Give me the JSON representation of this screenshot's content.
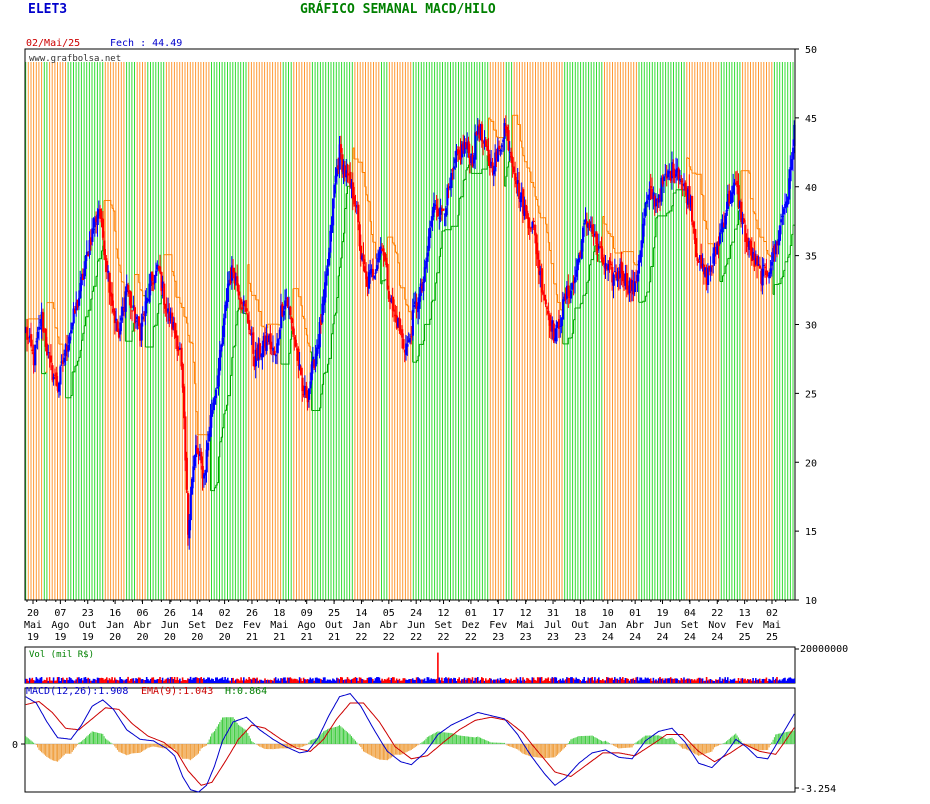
{
  "header": {
    "ticker": "ELET3",
    "title": "GRÁFICO SEMANAL MACD/HILO",
    "date": "02/Mai/25",
    "close_label": "Fech : 44.49",
    "watermark": "www.grafbolsa.net",
    "colors": {
      "ticker": "#0000cc",
      "title": "#008000",
      "date": "#cc0000",
      "close": "#0000cc"
    }
  },
  "chart_data": {
    "type": "candlestick",
    "price_axis": {
      "min": 10,
      "max": 50,
      "ticks": [
        10,
        15,
        20,
        25,
        30,
        35,
        40,
        45,
        50
      ]
    },
    "x_labels": [
      {
        "day": "20",
        "month": "Mai",
        "year": "19"
      },
      {
        "day": "07",
        "month": "Ago",
        "year": "19"
      },
      {
        "day": "23",
        "month": "Out",
        "year": "19"
      },
      {
        "day": "16",
        "month": "Jan",
        "year": "20"
      },
      {
        "day": "06",
        "month": "Abr",
        "year": "20"
      },
      {
        "day": "26",
        "month": "Jun",
        "year": "20"
      },
      {
        "day": "14",
        "month": "Set",
        "year": "20"
      },
      {
        "day": "02",
        "month": "Dez",
        "year": "20"
      },
      {
        "day": "26",
        "month": "Fev",
        "year": "21"
      },
      {
        "day": "18",
        "month": "Mai",
        "year": "21"
      },
      {
        "day": "09",
        "month": "Ago",
        "year": "21"
      },
      {
        "day": "25",
        "month": "Out",
        "year": "21"
      },
      {
        "day": "14",
        "month": "Jan",
        "year": "22"
      },
      {
        "day": "05",
        "month": "Abr",
        "year": "22"
      },
      {
        "day": "24",
        "month": "Jun",
        "year": "22"
      },
      {
        "day": "12",
        "month": "Set",
        "year": "22"
      },
      {
        "day": "01",
        "month": "Dez",
        "year": "22"
      },
      {
        "day": "17",
        "month": "Fev",
        "year": "23"
      },
      {
        "day": "12",
        "month": "Mai",
        "year": "23"
      },
      {
        "day": "31",
        "month": "Jul",
        "year": "23"
      },
      {
        "day": "18",
        "month": "Out",
        "year": "23"
      },
      {
        "day": "10",
        "month": "Jan",
        "year": "24"
      },
      {
        "day": "01",
        "month": "Abr",
        "year": "24"
      },
      {
        "day": "19",
        "month": "Jun",
        "year": "24"
      },
      {
        "day": "04",
        "month": "Set",
        "year": "24"
      },
      {
        "day": "22",
        "month": "Nov",
        "year": "24"
      },
      {
        "day": "13",
        "month": "Fev",
        "year": "25"
      },
      {
        "day": "02",
        "month": "Mai",
        "year": "25"
      }
    ],
    "close_path": [
      [
        0,
        29.5
      ],
      [
        6,
        27.5
      ],
      [
        12,
        30.5
      ],
      [
        18,
        27
      ],
      [
        24,
        25.5
      ],
      [
        32,
        29
      ],
      [
        40,
        32
      ],
      [
        48,
        36
      ],
      [
        55,
        38.5
      ],
      [
        60,
        35
      ],
      [
        66,
        31
      ],
      [
        70,
        29
      ],
      [
        76,
        33
      ],
      [
        80,
        31
      ],
      [
        86,
        29.5
      ],
      [
        94,
        33
      ],
      [
        100,
        34
      ],
      [
        106,
        31
      ],
      [
        112,
        29.5
      ],
      [
        116,
        28
      ],
      [
        118,
        25
      ],
      [
        120,
        20
      ],
      [
        122,
        15
      ],
      [
        124,
        18
      ],
      [
        128,
        21
      ],
      [
        134,
        19
      ],
      [
        140,
        24
      ],
      [
        144,
        26
      ],
      [
        148,
        29
      ],
      [
        150,
        31
      ],
      [
        152,
        33
      ],
      [
        156,
        34
      ],
      [
        162,
        32
      ],
      [
        168,
        30
      ],
      [
        172,
        27.5
      ],
      [
        176,
        28
      ],
      [
        182,
        29
      ],
      [
        188,
        27.5
      ],
      [
        192,
        31
      ],
      [
        196,
        32
      ],
      [
        200,
        30
      ],
      [
        204,
        28
      ],
      [
        208,
        25
      ],
      [
        212,
        25
      ],
      [
        216,
        27
      ],
      [
        220,
        29
      ],
      [
        224,
        31.5
      ],
      [
        228,
        35
      ],
      [
        232,
        40
      ],
      [
        236,
        42.5
      ],
      [
        240,
        41
      ],
      [
        244,
        40
      ],
      [
        248,
        39
      ],
      [
        252,
        35
      ],
      [
        256,
        33
      ],
      [
        262,
        34
      ],
      [
        268,
        36
      ],
      [
        272,
        33
      ],
      [
        276,
        31
      ],
      [
        280,
        30
      ],
      [
        284,
        28.5
      ],
      [
        288,
        28.5
      ],
      [
        292,
        31
      ],
      [
        296,
        32
      ],
      [
        300,
        33.5
      ],
      [
        304,
        37
      ],
      [
        308,
        39
      ],
      [
        312,
        38
      ],
      [
        318,
        39.5
      ],
      [
        324,
        42
      ],
      [
        330,
        43
      ],
      [
        336,
        42
      ],
      [
        340,
        44.5
      ],
      [
        344,
        43
      ],
      [
        350,
        41.5
      ],
      [
        356,
        42.5
      ],
      [
        360,
        44.5
      ],
      [
        366,
        42
      ],
      [
        370,
        40
      ],
      [
        376,
        38
      ],
      [
        382,
        37
      ],
      [
        386,
        34
      ],
      [
        390,
        32
      ],
      [
        394,
        30.5
      ],
      [
        398,
        29
      ],
      [
        402,
        30.5
      ],
      [
        406,
        32
      ],
      [
        412,
        33
      ],
      [
        416,
        35
      ],
      [
        420,
        37
      ],
      [
        424,
        37.5
      ],
      [
        430,
        35.5
      ],
      [
        436,
        34
      ],
      [
        442,
        33.5
      ],
      [
        448,
        34
      ],
      [
        452,
        33
      ],
      [
        458,
        32.5
      ],
      [
        462,
        35.5
      ],
      [
        466,
        38.5
      ],
      [
        470,
        39.5
      ],
      [
        474,
        39
      ],
      [
        478,
        40
      ],
      [
        484,
        41
      ],
      [
        490,
        41.5
      ],
      [
        494,
        40
      ],
      [
        500,
        39
      ],
      [
        504,
        35.5
      ],
      [
        508,
        34
      ],
      [
        512,
        33.5
      ],
      [
        518,
        35
      ],
      [
        522,
        36.5
      ],
      [
        528,
        39
      ],
      [
        534,
        40
      ],
      [
        538,
        38
      ],
      [
        542,
        36
      ],
      [
        546,
        35
      ],
      [
        550,
        34
      ],
      [
        554,
        33.5
      ],
      [
        558,
        34
      ],
      [
        562,
        35
      ],
      [
        566,
        36.5
      ],
      [
        570,
        38.5
      ],
      [
        574,
        40
      ],
      [
        578,
        44.49
      ]
    ],
    "volume": {
      "label": "Vol (mil R$)",
      "axis_label": "20000000",
      "spike_index": 310,
      "spike_value": 19000000
    },
    "macd": {
      "label": "MACD(12,26):1.908",
      "ema_label": "EMA(9):1.043",
      "hist_label": "H:0.864",
      "zero_label": "0",
      "min_label": "-3.254",
      "min": -3.254,
      "macd_path": [
        [
          0,
          3.0
        ],
        [
          8,
          2.6
        ],
        [
          16,
          1.4
        ],
        [
          24,
          0.4
        ],
        [
          34,
          0.3
        ],
        [
          42,
          1.2
        ],
        [
          50,
          2.4
        ],
        [
          58,
          2.8
        ],
        [
          66,
          2.2
        ],
        [
          76,
          0.9
        ],
        [
          86,
          0.3
        ],
        [
          96,
          0.2
        ],
        [
          106,
          -0.3
        ],
        [
          112,
          -0.8
        ],
        [
          118,
          -2.2
        ],
        [
          124,
          -3.1
        ],
        [
          130,
          -3.254
        ],
        [
          136,
          -2.8
        ],
        [
          142,
          -1.5
        ],
        [
          148,
          0.2
        ],
        [
          156,
          1.4
        ],
        [
          166,
          1.7
        ],
        [
          176,
          0.9
        ],
        [
          186,
          0.3
        ],
        [
          196,
          -0.2
        ],
        [
          206,
          -0.6
        ],
        [
          212,
          -0.5
        ],
        [
          220,
          0.4
        ],
        [
          228,
          1.8
        ],
        [
          236,
          3.0
        ],
        [
          244,
          3.2
        ],
        [
          252,
          2.4
        ],
        [
          262,
          0.9
        ],
        [
          272,
          -0.5
        ],
        [
          282,
          -1.2
        ],
        [
          290,
          -1.4
        ],
        [
          300,
          -0.6
        ],
        [
          310,
          0.6
        ],
        [
          320,
          1.2
        ],
        [
          330,
          1.6
        ],
        [
          340,
          2.0
        ],
        [
          350,
          1.8
        ],
        [
          360,
          1.6
        ],
        [
          370,
          0.6
        ],
        [
          380,
          -0.8
        ],
        [
          390,
          -2.0
        ],
        [
          398,
          -2.8
        ],
        [
          406,
          -2.3
        ],
        [
          416,
          -1.3
        ],
        [
          426,
          -0.6
        ],
        [
          436,
          -0.4
        ],
        [
          446,
          -0.9
        ],
        [
          456,
          -1.0
        ],
        [
          466,
          0.2
        ],
        [
          476,
          0.8
        ],
        [
          486,
          1.0
        ],
        [
          496,
          0.1
        ],
        [
          506,
          -1.3
        ],
        [
          516,
          -1.6
        ],
        [
          526,
          -0.7
        ],
        [
          534,
          0.3
        ],
        [
          542,
          -0.2
        ],
        [
          550,
          -0.9
        ],
        [
          558,
          -1.0
        ],
        [
          566,
          0.2
        ],
        [
          578,
          1.908
        ]
      ],
      "ema_path": [
        [
          0,
          2.5
        ],
        [
          10,
          2.7
        ],
        [
          20,
          2.0
        ],
        [
          30,
          1.0
        ],
        [
          40,
          0.9
        ],
        [
          50,
          1.6
        ],
        [
          60,
          2.3
        ],
        [
          70,
          2.2
        ],
        [
          80,
          1.3
        ],
        [
          92,
          0.5
        ],
        [
          104,
          0.1
        ],
        [
          114,
          -0.6
        ],
        [
          122,
          -1.8
        ],
        [
          132,
          -2.8
        ],
        [
          140,
          -2.6
        ],
        [
          150,
          -1.2
        ],
        [
          160,
          0.3
        ],
        [
          170,
          1.2
        ],
        [
          180,
          1.0
        ],
        [
          192,
          0.3
        ],
        [
          204,
          -0.3
        ],
        [
          214,
          -0.5
        ],
        [
          224,
          0.3
        ],
        [
          234,
          1.6
        ],
        [
          244,
          2.6
        ],
        [
          254,
          2.6
        ],
        [
          266,
          1.4
        ],
        [
          278,
          -0.2
        ],
        [
          290,
          -1.0
        ],
        [
          302,
          -0.8
        ],
        [
          314,
          0.1
        ],
        [
          326,
          0.9
        ],
        [
          338,
          1.5
        ],
        [
          350,
          1.7
        ],
        [
          362,
          1.5
        ],
        [
          374,
          0.7
        ],
        [
          386,
          -0.6
        ],
        [
          398,
          -1.9
        ],
        [
          410,
          -2.2
        ],
        [
          422,
          -1.4
        ],
        [
          434,
          -0.6
        ],
        [
          446,
          -0.6
        ],
        [
          458,
          -0.8
        ],
        [
          470,
          -0.1
        ],
        [
          482,
          0.6
        ],
        [
          494,
          0.6
        ],
        [
          506,
          -0.5
        ],
        [
          518,
          -1.2
        ],
        [
          530,
          -0.6
        ],
        [
          540,
          0.0
        ],
        [
          552,
          -0.5
        ],
        [
          564,
          -0.7
        ],
        [
          578,
          1.043
        ]
      ]
    },
    "colors": {
      "up_candle": "#0000ff",
      "down_candle": "#ff0000",
      "hilo_up": "#00a000",
      "hilo_down": "#ff8000",
      "bg_up": "#33dd33",
      "bg_down": "#ff9933",
      "macd_line": "#0000cc",
      "ema_line": "#cc0000",
      "hist_pos": "#44cc44",
      "hist_neg": "#ee9933"
    }
  }
}
